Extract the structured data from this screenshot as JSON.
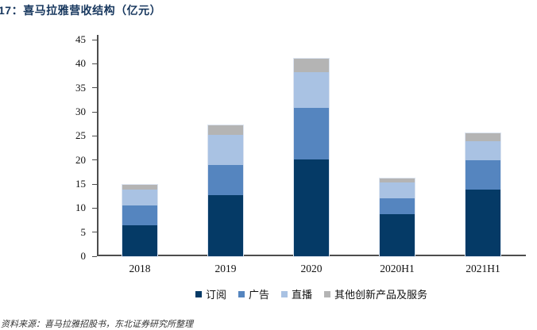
{
  "title": "17：喜马拉雅营收结构（亿元）",
  "source_note": "资料来源：喜马拉雅招股书，东北证券研究所整理",
  "colors": {
    "title": "#17375E",
    "axis": "#4d4d4d",
    "series_subscription": "#053A66",
    "series_advertising": "#5585BF",
    "series_livestream": "#A9C2E3",
    "series_other": "#B4B4B4"
  },
  "chart_data": {
    "type": "bar",
    "stacked": true,
    "title": "17：喜马拉雅营收结构（亿元）",
    "categories": [
      "2018",
      "2019",
      "2020",
      "2020H1",
      "2021H1"
    ],
    "series": [
      {
        "name": "订阅",
        "color": "#053A66",
        "values": [
          6.4,
          12.7,
          20.1,
          8.8,
          13.8
        ]
      },
      {
        "name": "广告",
        "color": "#5585BF",
        "values": [
          4.2,
          6.3,
          10.8,
          3.3,
          6.2
        ]
      },
      {
        "name": "直播",
        "color": "#A9C2E3",
        "values": [
          3.2,
          6.2,
          7.3,
          3.2,
          3.9
        ]
      },
      {
        "name": "其他创新产品及服务",
        "color": "#B4B4B4",
        "values": [
          1.1,
          2.0,
          2.8,
          0.8,
          1.6
        ]
      }
    ],
    "totals": [
      14.9,
      27.2,
      41.0,
      16.1,
      25.5
    ],
    "xlabel": "",
    "ylabel": "",
    "ylim": [
      0,
      45
    ],
    "yticks": [
      0,
      5,
      10,
      15,
      20,
      25,
      30,
      35,
      40,
      45
    ],
    "grid": false,
    "legend_position": "bottom"
  }
}
